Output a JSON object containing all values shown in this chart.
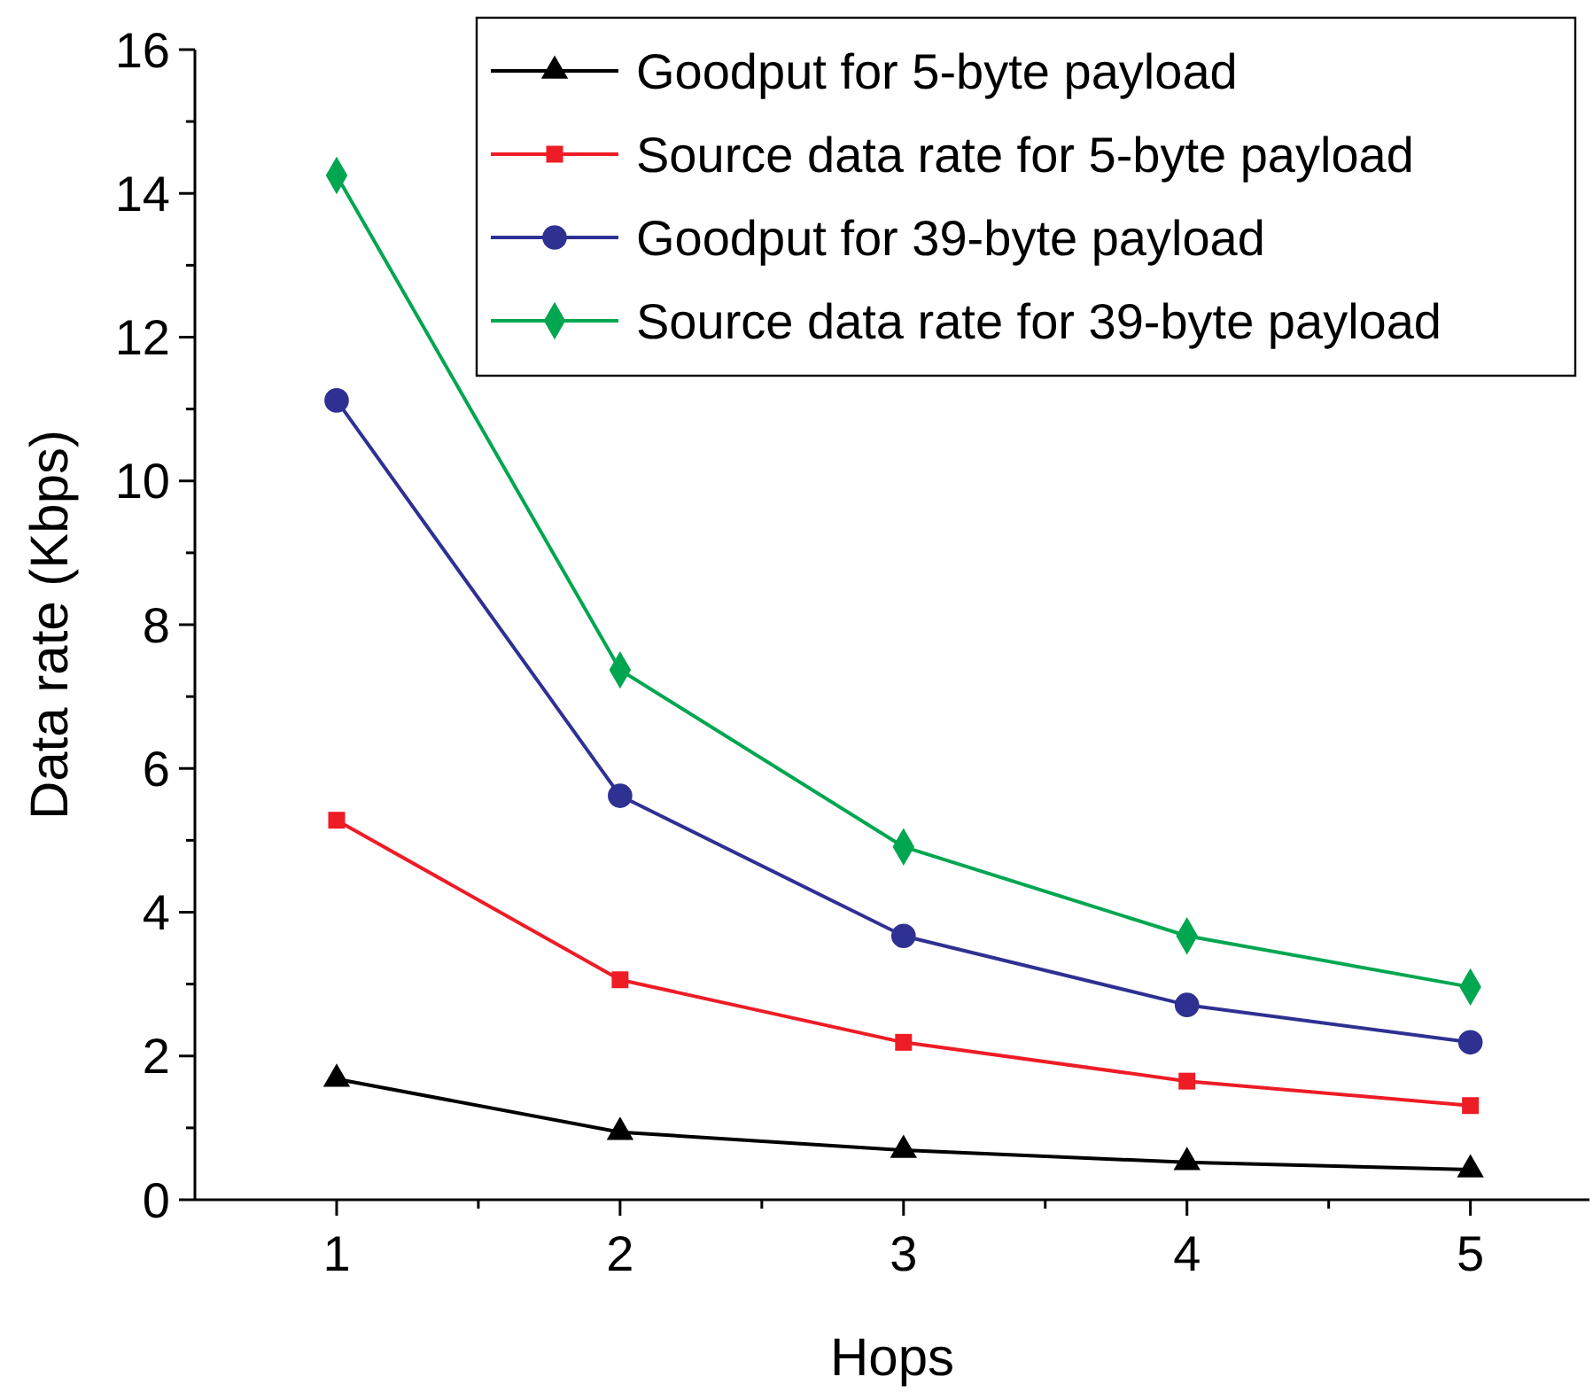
{
  "chart_data": {
    "type": "line",
    "xlabel": "Hops",
    "ylabel": "Data rate (Kbps)",
    "x": [
      1,
      2,
      3,
      4,
      5
    ],
    "xlim": [
      0.5,
      5.42
    ],
    "xticks": [
      1,
      {
        "value": 1.5,
        "label": null
      },
      2,
      {
        "value": 2.5,
        "label": null
      },
      3,
      {
        "value": 3.5,
        "label": null
      },
      4,
      {
        "value": 4.5,
        "label": null
      },
      5
    ],
    "ylim": [
      0,
      16
    ],
    "yticks": [
      0,
      {
        "value": 1,
        "label": null
      },
      2,
      {
        "value": 3,
        "label": null
      },
      4,
      {
        "value": 5,
        "label": null
      },
      6,
      {
        "value": 7,
        "label": null
      },
      8,
      {
        "value": 9,
        "label": null
      },
      10,
      {
        "value": 11,
        "label": null
      },
      12,
      {
        "value": 13,
        "label": null
      },
      14,
      {
        "value": 15,
        "label": null
      },
      16
    ],
    "grid": false,
    "legend": "top right",
    "line_style": "solid",
    "series": [
      {
        "name": "Goodput for 5-byte payload",
        "color": "#000000",
        "marker": "triangle",
        "values": [
          1.68,
          0.94,
          0.69,
          0.52,
          0.42
        ]
      },
      {
        "name": "Source data rate for 5-byte payload",
        "color": "#ee1c25",
        "marker": "square",
        "values": [
          5.28,
          3.06,
          2.19,
          1.65,
          1.31
        ]
      },
      {
        "name": "Goodput for 39-byte payload",
        "color": "#2e3192",
        "marker": "circle",
        "values": [
          11.12,
          5.62,
          3.67,
          2.71,
          2.19
        ]
      },
      {
        "name": "Source data rate for 39-byte payload",
        "color": "#00a650",
        "marker": "diamond",
        "values": [
          14.25,
          7.37,
          4.91,
          3.67,
          2.96
        ]
      }
    ]
  }
}
